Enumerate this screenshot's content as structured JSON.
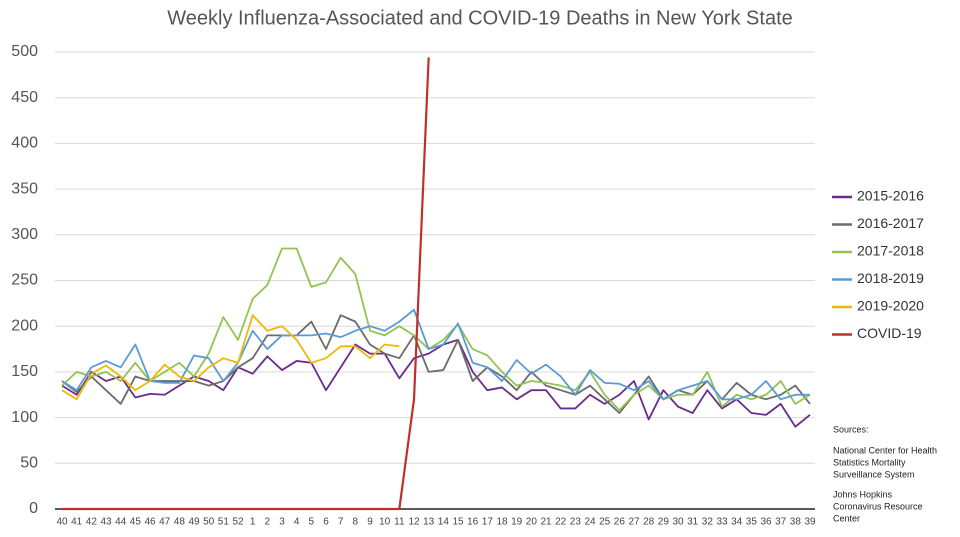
{
  "chart_data": {
    "type": "line",
    "title": "Weekly Influenza-Associated and COVID-19 Deaths in New York State",
    "categories": [
      "40",
      "41",
      "42",
      "43",
      "44",
      "45",
      "46",
      "47",
      "48",
      "49",
      "50",
      "51",
      "52",
      "1",
      "2",
      "3",
      "4",
      "5",
      "6",
      "7",
      "8",
      "9",
      "10",
      "11",
      "12",
      "13",
      "14",
      "15",
      "16",
      "17",
      "18",
      "19",
      "20",
      "21",
      "22",
      "23",
      "24",
      "25",
      "26",
      "27",
      "28",
      "29",
      "30",
      "31",
      "32",
      "33",
      "34",
      "35",
      "36",
      "37",
      "38",
      "39"
    ],
    "ylim": [
      0,
      500
    ],
    "yticks": [
      0,
      50,
      100,
      150,
      200,
      250,
      300,
      350,
      400,
      450,
      500
    ],
    "grid": true,
    "legend": "right",
    "series": [
      {
        "name": "2015-2016",
        "color": "#6a2c8e",
        "values": [
          135,
          125,
          150,
          140,
          145,
          122,
          126,
          125,
          135,
          145,
          140,
          130,
          155,
          148,
          167,
          152,
          162,
          160,
          130,
          155,
          180,
          170,
          170,
          143,
          165,
          170,
          180,
          185,
          150,
          130,
          133,
          120,
          130,
          130,
          110,
          110,
          125,
          115,
          125,
          140,
          98,
          130,
          112,
          105,
          130,
          110,
          120,
          105,
          103,
          115,
          90,
          103
        ]
      },
      {
        "name": "2016-2017",
        "color": "#6b6b6b",
        "values": [
          140,
          128,
          145,
          130,
          115,
          145,
          140,
          140,
          140,
          140,
          135,
          140,
          155,
          165,
          190,
          190,
          190,
          205,
          175,
          212,
          205,
          180,
          170,
          165,
          190,
          150,
          152,
          185,
          140,
          155,
          145,
          130,
          150,
          135,
          130,
          125,
          135,
          120,
          105,
          125,
          145,
          120,
          130,
          125,
          140,
          120,
          138,
          125,
          120,
          125,
          135,
          115
        ]
      },
      {
        "name": "2017-2018",
        "color": "#92c353",
        "values": [
          135,
          150,
          145,
          150,
          140,
          160,
          140,
          150,
          160,
          145,
          170,
          210,
          185,
          230,
          245,
          285,
          285,
          243,
          248,
          275,
          257,
          195,
          190,
          200,
          190,
          175,
          185,
          202,
          175,
          168,
          150,
          135,
          140,
          138,
          135,
          130,
          150,
          125,
          108,
          125,
          135,
          120,
          125,
          125,
          150,
          112,
          125,
          120,
          125,
          140,
          115,
          125
        ]
      },
      {
        "name": "2018-2019",
        "color": "#5b9bd5",
        "values": [
          140,
          130,
          155,
          162,
          155,
          180,
          140,
          138,
          138,
          168,
          165,
          140,
          160,
          195,
          175,
          190,
          190,
          190,
          192,
          188,
          195,
          200,
          195,
          205,
          218,
          175,
          180,
          203,
          160,
          155,
          140,
          163,
          148,
          158,
          145,
          125,
          152,
          138,
          137,
          130,
          140,
          120,
          130,
          135,
          140,
          120,
          120,
          125,
          140,
          120,
          125,
          125
        ]
      },
      {
        "name": "2019-2020",
        "color": "#f2b705",
        "values": [
          130,
          120,
          148,
          157,
          145,
          130,
          140,
          158,
          145,
          140,
          155,
          165,
          160,
          212,
          195,
          200,
          185,
          160,
          165,
          178,
          178,
          165,
          180,
          178,
          null,
          null,
          null,
          null,
          null,
          null,
          null,
          null,
          null,
          null,
          null,
          null,
          null,
          null,
          null,
          null,
          null,
          null,
          null,
          null,
          null,
          null,
          null,
          null,
          null,
          null,
          null,
          null
        ]
      },
      {
        "name": "COVID-19",
        "color": "#c0302b",
        "values": [
          0,
          0,
          0,
          0,
          0,
          0,
          0,
          0,
          0,
          0,
          0,
          0,
          0,
          0,
          0,
          0,
          0,
          0,
          0,
          0,
          0,
          0,
          0,
          0,
          120,
          494,
          null,
          null,
          null,
          null,
          null,
          null,
          null,
          null,
          null,
          null,
          null,
          null,
          null,
          null,
          null,
          null,
          null,
          null,
          null,
          null,
          null,
          null,
          null,
          null,
          null,
          null
        ]
      }
    ],
    "sources": {
      "heading": "Sources:",
      "items": [
        [
          "National Center for Health",
          "Statistics Mortality",
          "Surveillance System"
        ],
        [
          "Johns Hopkins",
          "Coronavirus Resource",
          "Center"
        ]
      ]
    }
  }
}
